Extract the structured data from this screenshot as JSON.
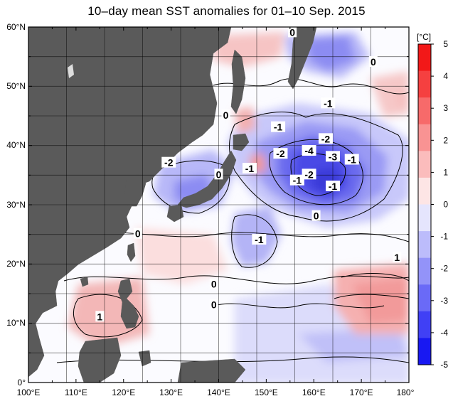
{
  "title": "10–day mean SST anomalies for 01–10 Sep. 2015",
  "unit": "[°C]",
  "lon_ticks": [
    "100°E",
    "110°E",
    "120°E",
    "130°E",
    "140°E",
    "150°E",
    "160°E",
    "170°E",
    "180°"
  ],
  "lat_ticks": [
    "60°N",
    "50°N",
    "40°N",
    "30°N",
    "20°N",
    "10°N",
    "0°"
  ],
  "colorbar": {
    "ticks": [
      "5",
      "4",
      "3",
      "2",
      "1",
      "0",
      "-1",
      "-2",
      "-3",
      "-4",
      "-5"
    ],
    "colors": [
      "#f21818",
      "#f54040",
      "#f76a6a",
      "#f99393",
      "#fbbcbc",
      "#fde5e5",
      "#e5e5fd",
      "#bcbcfb",
      "#9393f9",
      "#6a6af7",
      "#4040f5",
      "#1818f2"
    ]
  },
  "contour_labels": [
    {
      "text": "0",
      "lon": 155.5,
      "lat": 59.0
    },
    {
      "text": "0",
      "lon": 172.5,
      "lat": 54.0
    },
    {
      "text": "0",
      "lon": 141.5,
      "lat": 45.0
    },
    {
      "text": "-1",
      "lon": 163.0,
      "lat": 47.0
    },
    {
      "text": "-1",
      "lon": 152.5,
      "lat": 43.0
    },
    {
      "text": "-2",
      "lon": 162.5,
      "lat": 41.0
    },
    {
      "text": "-4",
      "lon": 159.0,
      "lat": 39.0
    },
    {
      "text": "-3",
      "lon": 164.0,
      "lat": 38.0
    },
    {
      "text": "-2",
      "lon": 153.0,
      "lat": 38.5
    },
    {
      "text": "-1",
      "lon": 168.0,
      "lat": 37.5
    },
    {
      "text": "-2",
      "lon": 129.5,
      "lat": 37.0
    },
    {
      "text": "-1",
      "lon": 146.5,
      "lat": 36.0
    },
    {
      "text": "0",
      "lon": 140.0,
      "lat": 35.0
    },
    {
      "text": "-2",
      "lon": 159.0,
      "lat": 35.0
    },
    {
      "text": "-1",
      "lon": 156.5,
      "lat": 34.0
    },
    {
      "text": "-1",
      "lon": 164.0,
      "lat": 33.0
    },
    {
      "text": "0",
      "lon": 160.5,
      "lat": 28.0
    },
    {
      "text": "0",
      "lon": 123.0,
      "lat": 25.0
    },
    {
      "text": "-1",
      "lon": 148.5,
      "lat": 24.0
    },
    {
      "text": "1",
      "lon": 177.5,
      "lat": 21.0
    },
    {
      "text": "0",
      "lon": 139.0,
      "lat": 16.5
    },
    {
      "text": "0",
      "lon": 139.0,
      "lat": 13.0
    },
    {
      "text": "1",
      "lon": 115.0,
      "lat": 11.0
    }
  ]
}
